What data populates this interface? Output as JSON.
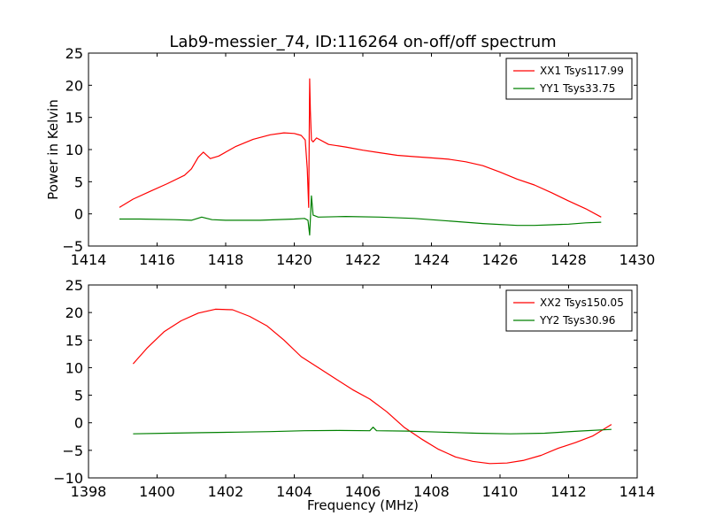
{
  "figure": {
    "title": "Lab9-messier_74, ID:116264 on-off/off spectrum",
    "xlabel": "Frequency (MHz)",
    "ylabel": "Power in Kelvin"
  },
  "chart_data": [
    {
      "type": "line",
      "title": "Lab9-messier_74, ID:116264 on-off/off spectrum",
      "xlabel": "",
      "ylabel": "Power in Kelvin",
      "xlim": [
        1414,
        1430
      ],
      "ylim": [
        -5,
        25
      ],
      "xticks": [
        1414,
        1416,
        1418,
        1420,
        1422,
        1424,
        1426,
        1428,
        1430
      ],
      "yticks": [
        -5,
        0,
        5,
        10,
        15,
        20,
        25
      ],
      "grid": false,
      "legend_position": "top-right",
      "series": [
        {
          "name": "XX1 Tsys117.99",
          "color": "#ff0000",
          "x": [
            1414.9,
            1415.3,
            1415.8,
            1416.3,
            1416.8,
            1417.0,
            1417.2,
            1417.35,
            1417.55,
            1417.8,
            1418.3,
            1418.8,
            1419.3,
            1419.7,
            1420.0,
            1420.2,
            1420.32,
            1420.38,
            1420.42,
            1420.45,
            1420.47,
            1420.5,
            1420.55,
            1420.65,
            1421.0,
            1421.5,
            1422.0,
            1422.5,
            1423.0,
            1423.5,
            1424.0,
            1424.5,
            1425.0,
            1425.5,
            1426.0,
            1426.5,
            1427.0,
            1427.5,
            1428.0,
            1428.5,
            1428.95
          ],
          "y": [
            1.0,
            2.3,
            3.5,
            4.7,
            6.0,
            7.0,
            8.8,
            9.6,
            8.6,
            9.0,
            10.5,
            11.6,
            12.3,
            12.6,
            12.5,
            12.2,
            11.5,
            7.0,
            1.0,
            21.0,
            16.0,
            11.5,
            11.2,
            11.8,
            10.8,
            10.4,
            9.9,
            9.5,
            9.1,
            8.9,
            8.7,
            8.5,
            8.1,
            7.5,
            6.5,
            5.4,
            4.5,
            3.3,
            2.0,
            0.8,
            -0.5
          ]
        },
        {
          "name": "YY1 Tsys33.75",
          "color": "#008000",
          "x": [
            1414.9,
            1415.5,
            1416.5,
            1417.0,
            1417.3,
            1417.6,
            1418.0,
            1419.0,
            1420.0,
            1420.3,
            1420.4,
            1420.45,
            1420.5,
            1420.55,
            1420.7,
            1421.5,
            1422.5,
            1423.5,
            1424.5,
            1425.5,
            1426.5,
            1427.0,
            1427.5,
            1428.0,
            1428.5,
            1428.95
          ],
          "y": [
            -0.8,
            -0.8,
            -0.9,
            -1.0,
            -0.5,
            -0.9,
            -1.0,
            -1.0,
            -0.8,
            -0.7,
            -1.0,
            -3.3,
            2.8,
            -0.2,
            -0.5,
            -0.4,
            -0.5,
            -0.7,
            -1.1,
            -1.5,
            -1.8,
            -1.8,
            -1.7,
            -1.6,
            -1.4,
            -1.3
          ]
        }
      ]
    },
    {
      "type": "line",
      "title": "",
      "xlabel": "Frequency (MHz)",
      "ylabel": "",
      "xlim": [
        1398,
        1414
      ],
      "ylim": [
        -10,
        25
      ],
      "xticks": [
        1398,
        1400,
        1402,
        1404,
        1406,
        1408,
        1410,
        1412,
        1414
      ],
      "yticks": [
        -10,
        -5,
        0,
        5,
        10,
        15,
        20,
        25
      ],
      "grid": false,
      "legend_position": "top-right",
      "series": [
        {
          "name": "XX2 Tsys150.05",
          "color": "#ff0000",
          "x": [
            1399.3,
            1399.7,
            1400.2,
            1400.7,
            1401.2,
            1401.7,
            1402.2,
            1402.7,
            1403.2,
            1403.7,
            1404.2,
            1404.7,
            1405.2,
            1405.7,
            1406.2,
            1406.7,
            1407.2,
            1407.7,
            1408.2,
            1408.7,
            1409.2,
            1409.7,
            1410.2,
            1410.7,
            1411.2,
            1411.7,
            1412.2,
            1412.7,
            1413.25
          ],
          "y": [
            10.7,
            13.5,
            16.5,
            18.5,
            19.9,
            20.6,
            20.5,
            19.3,
            17.6,
            15.0,
            12.0,
            10.0,
            8.0,
            6.0,
            4.3,
            2.0,
            -0.8,
            -2.9,
            -4.8,
            -6.2,
            -7.0,
            -7.4,
            -7.3,
            -6.8,
            -5.9,
            -4.6,
            -3.6,
            -2.4,
            -0.3
          ]
        },
        {
          "name": "YY2 Tsys30.96",
          "color": "#008000",
          "x": [
            1399.3,
            1400.3,
            1401.3,
            1402.3,
            1403.3,
            1404.3,
            1405.3,
            1406.2,
            1406.3,
            1406.4,
            1407.3,
            1408.3,
            1409.3,
            1410.3,
            1411.3,
            1412.3,
            1413.25
          ],
          "y": [
            -2.0,
            -1.9,
            -1.8,
            -1.7,
            -1.6,
            -1.45,
            -1.4,
            -1.45,
            -0.8,
            -1.45,
            -1.5,
            -1.7,
            -1.9,
            -2.0,
            -1.9,
            -1.5,
            -1.2
          ]
        }
      ]
    }
  ]
}
